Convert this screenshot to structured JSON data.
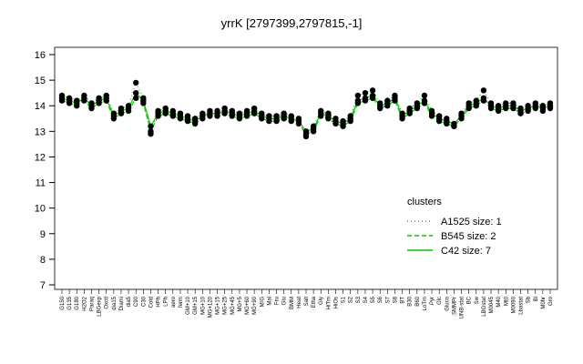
{
  "chart_data": {
    "type": "line",
    "title": "yrrK [2797399,2797815,-1]",
    "categories": [
      "G150",
      "G135",
      "G180",
      "H2O2",
      "Paraq",
      "LBGexp",
      "Oxctl",
      "dia15",
      "Diami",
      "dia5",
      "C90",
      "C30",
      "Cold",
      "HPh",
      "LPh",
      "aero",
      "ferm",
      "GM+10",
      "GM+15",
      "MG+10",
      "MG+120",
      "MG+15",
      "MG+25",
      "MG+45",
      "MG+5",
      "MG+60",
      "MG+90",
      "M/G",
      "Mal",
      "Fru",
      "Glu",
      "BMM",
      "Heat",
      "Salt",
      "Etha",
      "Gly",
      "HiTm",
      "HiOs",
      "S1",
      "S2",
      "S3",
      "S4",
      "S5",
      "S6",
      "S7",
      "S8",
      "BT",
      "B30",
      "B60",
      "LoTm",
      "Pyr",
      "Glc",
      "Gluco",
      "SMMPr",
      "UNB-stat",
      "BC",
      "Sw",
      "LBGstat",
      "M0045",
      "M40",
      "Mt0",
      "M0090",
      "Lbastat",
      "Sb",
      "Bl",
      "M0hr",
      "Gro"
    ],
    "series": [
      {
        "name": "A1525 size: 1",
        "color": "#00cc00",
        "linestyle": "dotted",
        "values": [
          14.4,
          14.3,
          14.2,
          14.4,
          14.1,
          14.3,
          14.4,
          13.7,
          13.9,
          14.0,
          14.9,
          14.3,
          12.9,
          13.8,
          13.9,
          13.8,
          13.7,
          13.6,
          13.5,
          13.7,
          13.8,
          13.8,
          13.9,
          13.8,
          13.7,
          13.8,
          13.9,
          13.7,
          13.6,
          13.6,
          13.7,
          13.6,
          13.5,
          12.8,
          13.2,
          13.8,
          13.7,
          13.5,
          13.4,
          13.6,
          14.4,
          14.5,
          14.6,
          14.1,
          14.2,
          14.4,
          13.7,
          13.9,
          14.1,
          14.4,
          13.8,
          13.6,
          13.5,
          13.2,
          13.7,
          14.1,
          14.2,
          14.6,
          14.1,
          14.0,
          14.1,
          14.1,
          13.9,
          14.0,
          14.1,
          14.0,
          14.1
        ]
      },
      {
        "name": "B545 size: 2",
        "color": "#00cc00",
        "linestyle": "dashed",
        "values": [
          14.2,
          14.1,
          14.0,
          14.2,
          13.9,
          14.1,
          14.2,
          13.5,
          13.7,
          13.8,
          14.3,
          14.1,
          13.0,
          13.6,
          13.7,
          13.6,
          13.5,
          13.4,
          13.3,
          13.5,
          13.6,
          13.6,
          13.7,
          13.6,
          13.5,
          13.6,
          13.7,
          13.5,
          13.4,
          13.4,
          13.5,
          13.4,
          13.3,
          12.9,
          13.0,
          13.6,
          13.5,
          13.3,
          13.2,
          13.4,
          14.1,
          14.2,
          14.3,
          13.9,
          14.0,
          14.2,
          13.5,
          13.7,
          13.9,
          14.1,
          13.6,
          13.4,
          13.3,
          13.2,
          13.5,
          13.9,
          14.0,
          14.2,
          13.9,
          13.8,
          13.9,
          13.9,
          13.7,
          13.8,
          13.9,
          13.8,
          13.9
        ]
      },
      {
        "name": "C42 size: 7",
        "color": "#00cc00",
        "linestyle": "solid",
        "values": [
          14.3,
          14.2,
          14.1,
          14.3,
          14.0,
          14.2,
          14.3,
          13.6,
          13.8,
          13.9,
          14.5,
          14.2,
          13.2,
          13.7,
          13.8,
          13.7,
          13.6,
          13.5,
          13.4,
          13.6,
          13.7,
          13.7,
          13.8,
          13.7,
          13.6,
          13.7,
          13.8,
          13.6,
          13.5,
          13.5,
          13.6,
          13.5,
          13.4,
          13.0,
          13.1,
          13.7,
          13.6,
          13.4,
          13.3,
          13.5,
          14.2,
          14.3,
          14.4,
          14.0,
          14.1,
          14.3,
          13.6,
          13.8,
          14.0,
          14.2,
          13.7,
          13.5,
          13.4,
          13.3,
          13.6,
          14.0,
          14.1,
          14.3,
          14.0,
          13.9,
          14.0,
          14.0,
          13.8,
          13.9,
          14.0,
          13.9,
          14.0
        ]
      }
    ],
    "marker_color": "#000000",
    "legend_title": "clusters",
    "legend": "right",
    "ylim": [
      7,
      16
    ],
    "yticks": [
      7,
      8,
      9,
      10,
      11,
      12,
      13,
      14,
      15,
      16
    ]
  }
}
